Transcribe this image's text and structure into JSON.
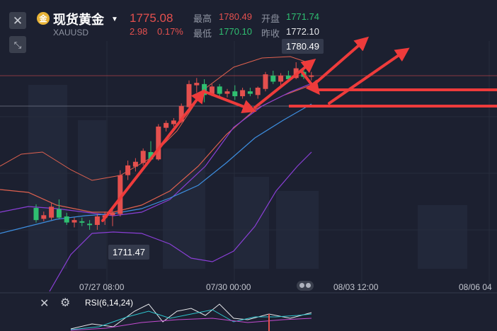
{
  "header": {
    "close_icon": "close-icon",
    "collapse_icon": "collapse-arrows-icon",
    "coin_icon": "gold-coin-icon",
    "coin_glyph": "金",
    "title": "现货黄金",
    "symbol": "XAUUSD",
    "price": "1775.08",
    "change": "2.98",
    "change_pct": "0.17%",
    "high_label": "最高",
    "high": "1780.49",
    "low_label": "最低",
    "low": "1770.10",
    "open_label": "开盘",
    "open": "1771.74",
    "prev_close_label": "昨收",
    "prev_close": "1772.10"
  },
  "chart": {
    "high_tag": "1780.49",
    "low_tag": "1711.47",
    "x_labels": [
      "07/27 08:00",
      "07/30 00:00",
      "08/03 12:00",
      "08/06 04"
    ],
    "indicator": "RSI(6,14,24)",
    "settings_icon": "gear-icon",
    "close_icon": "close-icon"
  },
  "colors": {
    "background": "#1c2030",
    "up": "#e4504e",
    "down": "#2fbf71",
    "ma_blue": "#3d8ee0",
    "band_purple": "#8a3fd6",
    "band_orange": "#e0614f",
    "annotation_red": "#ee3b3b"
  },
  "chart_data": {
    "type": "candlestick",
    "x_ticks": [
      "07/27 08:00",
      "07/30 00:00",
      "08/03 12:00",
      "08/06 04"
    ],
    "price_high": 1780.49,
    "price_low": 1711.47,
    "candles": [
      {
        "o": 1720.5,
        "h": 1722.0,
        "l": 1714.5,
        "c": 1715.5
      },
      {
        "o": 1716.0,
        "h": 1719.0,
        "l": 1715.0,
        "c": 1717.5
      },
      {
        "o": 1716.5,
        "h": 1722.5,
        "l": 1715.5,
        "c": 1721.0
      },
      {
        "o": 1720.0,
        "h": 1724.0,
        "l": 1716.0,
        "c": 1716.5
      },
      {
        "o": 1717.0,
        "h": 1718.5,
        "l": 1713.5,
        "c": 1714.5
      },
      {
        "o": 1714.5,
        "h": 1716.5,
        "l": 1712.5,
        "c": 1715.5
      },
      {
        "o": 1715.0,
        "h": 1716.5,
        "l": 1713.0,
        "c": 1714.5
      },
      {
        "o": 1714.0,
        "h": 1715.5,
        "l": 1711.5,
        "c": 1713.5
      },
      {
        "o": 1713.5,
        "h": 1718.0,
        "l": 1711.5,
        "c": 1717.0
      },
      {
        "o": 1716.5,
        "h": 1719.0,
        "l": 1713.5,
        "c": 1717.5
      },
      {
        "o": 1717.5,
        "h": 1720.0,
        "l": 1713.0,
        "c": 1718.5
      },
      {
        "o": 1718.0,
        "h": 1736.0,
        "l": 1717.0,
        "c": 1734.0
      },
      {
        "o": 1734.0,
        "h": 1740.0,
        "l": 1732.0,
        "c": 1738.0
      },
      {
        "o": 1737.5,
        "h": 1741.0,
        "l": 1735.5,
        "c": 1739.5
      },
      {
        "o": 1739.0,
        "h": 1745.0,
        "l": 1738.0,
        "c": 1744.0
      },
      {
        "o": 1743.5,
        "h": 1748.0,
        "l": 1740.0,
        "c": 1740.5
      },
      {
        "o": 1740.5,
        "h": 1755.0,
        "l": 1740.0,
        "c": 1754.0
      },
      {
        "o": 1753.5,
        "h": 1756.5,
        "l": 1752.0,
        "c": 1755.5
      },
      {
        "o": 1755.0,
        "h": 1757.5,
        "l": 1754.0,
        "c": 1756.5
      },
      {
        "o": 1756.0,
        "h": 1763.5,
        "l": 1755.5,
        "c": 1762.5
      },
      {
        "o": 1762.0,
        "h": 1773.0,
        "l": 1761.5,
        "c": 1771.5
      },
      {
        "o": 1771.0,
        "h": 1774.0,
        "l": 1768.0,
        "c": 1772.0
      },
      {
        "o": 1771.5,
        "h": 1773.5,
        "l": 1764.0,
        "c": 1767.0
      },
      {
        "o": 1767.5,
        "h": 1771.5,
        "l": 1766.5,
        "c": 1770.5
      },
      {
        "o": 1770.5,
        "h": 1771.5,
        "l": 1766.0,
        "c": 1767.5
      },
      {
        "o": 1767.5,
        "h": 1769.5,
        "l": 1766.0,
        "c": 1768.5
      },
      {
        "o": 1768.5,
        "h": 1771.0,
        "l": 1765.0,
        "c": 1766.5
      },
      {
        "o": 1766.5,
        "h": 1770.0,
        "l": 1765.5,
        "c": 1769.0
      },
      {
        "o": 1768.5,
        "h": 1770.0,
        "l": 1766.5,
        "c": 1767.5
      },
      {
        "o": 1767.0,
        "h": 1770.5,
        "l": 1765.5,
        "c": 1770.0
      },
      {
        "o": 1769.5,
        "h": 1776.5,
        "l": 1768.5,
        "c": 1775.5
      },
      {
        "o": 1775.0,
        "h": 1777.0,
        "l": 1771.5,
        "c": 1772.5
      },
      {
        "o": 1772.5,
        "h": 1776.0,
        "l": 1771.0,
        "c": 1775.0
      },
      {
        "o": 1775.0,
        "h": 1777.0,
        "l": 1773.0,
        "c": 1773.5
      },
      {
        "o": 1774.0,
        "h": 1780.49,
        "l": 1773.5,
        "c": 1778.0
      },
      {
        "o": 1776.5,
        "h": 1777.5,
        "l": 1773.5,
        "c": 1774.5
      },
      {
        "o": 1774.5,
        "h": 1776.5,
        "l": 1773.0,
        "c": 1775.08
      }
    ],
    "indicator": "RSI(6,14,24)"
  }
}
